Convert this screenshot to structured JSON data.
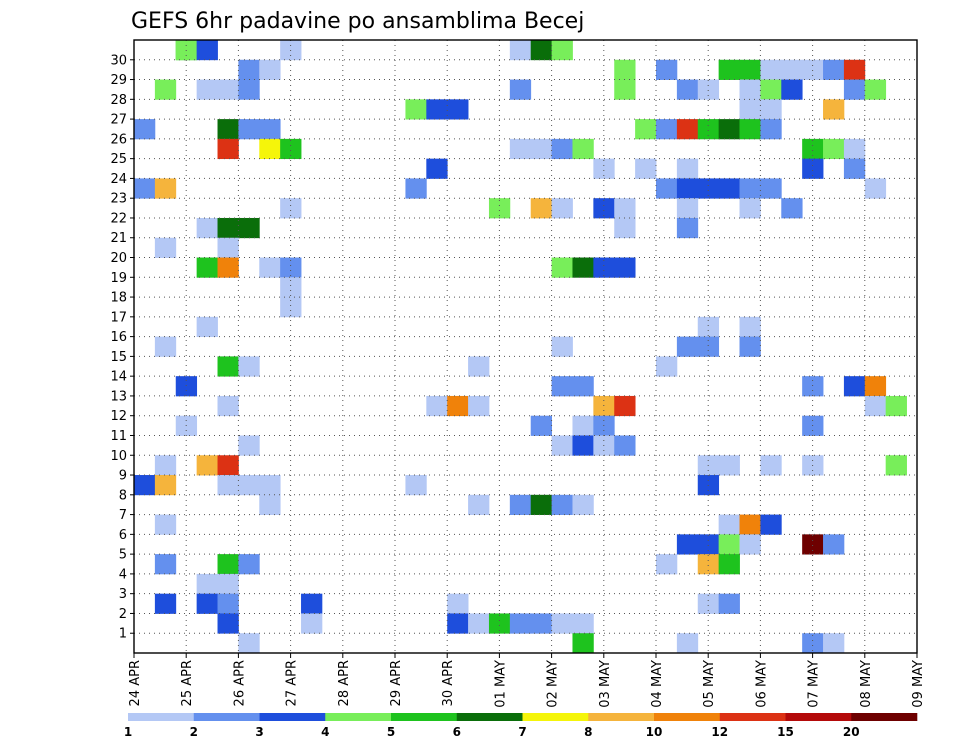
{
  "chart_data": {
    "type": "heatmap",
    "title": "GEFS 6hr padavine po ansamblima Becej",
    "x_ticks": [
      "24 APR",
      "25 APR",
      "26 APR",
      "27 APR",
      "28 APR",
      "29 APR",
      "30 APR",
      "01 MAY",
      "02 MAY",
      "03 MAY",
      "04 MAY",
      "05 MAY",
      "06 MAY",
      "07 MAY",
      "08 MAY",
      "09 MAY"
    ],
    "y_ticks": [
      "1",
      "2",
      "3",
      "4",
      "5",
      "6",
      "7",
      "8",
      "9",
      "10",
      "11",
      "12",
      "13",
      "14",
      "15",
      "16",
      "17",
      "18",
      "19",
      "20",
      "21",
      "22",
      "23",
      "24",
      "25",
      "26",
      "27",
      "28",
      "29",
      "30"
    ],
    "ylim": [
      0,
      30
    ],
    "grid": true,
    "legend_position": "bottom",
    "legend": {
      "labels": [
        "1",
        "2",
        "3",
        "4",
        "5",
        "6",
        "7",
        "8",
        "10",
        "12",
        "15",
        "20"
      ],
      "colors": [
        "#b4c8f5",
        "#6490ee",
        "#1e4edc",
        "#78ee5a",
        "#1ec31e",
        "#0a6e0a",
        "#f5f50a",
        "#f5b43c",
        "#f0820a",
        "#dc3214",
        "#b40a0a",
        "#6e0000"
      ]
    },
    "colors": [
      "#b4c8f5",
      "#6490ee",
      "#1e4edc",
      "#78ee5a",
      "#1ec31e",
      "#0a6e0a",
      "#f5f50a",
      "#f5b43c",
      "#f0820a",
      "#dc3214",
      "#b40a0a",
      "#6e0000"
    ],
    "cells": [
      [
        2,
        30,
        4
      ],
      [
        2,
        30,
        3
      ],
      [
        3,
        30,
        2
      ],
      [
        7,
        30,
        0
      ],
      [
        18,
        30,
        0
      ],
      [
        19,
        30,
        5
      ],
      [
        20,
        30,
        3
      ],
      [
        5,
        29,
        1
      ],
      [
        6,
        29,
        0
      ],
      [
        23,
        29,
        3
      ],
      [
        25,
        29,
        1
      ],
      [
        28,
        29,
        4
      ],
      [
        29,
        29,
        4
      ],
      [
        30,
        29,
        0
      ],
      [
        31,
        29,
        0
      ],
      [
        32,
        29,
        0
      ],
      [
        33,
        29,
        1
      ],
      [
        34,
        29,
        9
      ],
      [
        1,
        28,
        3
      ],
      [
        3,
        28,
        0
      ],
      [
        4,
        28,
        0
      ],
      [
        5,
        28,
        1
      ],
      [
        18,
        28,
        1
      ],
      [
        23,
        28,
        3
      ],
      [
        26,
        28,
        1
      ],
      [
        27,
        28,
        0
      ],
      [
        29,
        28,
        0
      ],
      [
        30,
        28,
        3
      ],
      [
        31,
        28,
        2
      ],
      [
        34,
        28,
        1
      ],
      [
        35,
        28,
        3
      ],
      [
        13,
        27,
        3
      ],
      [
        14,
        27,
        2
      ],
      [
        15,
        27,
        2
      ],
      [
        29,
        27,
        0
      ],
      [
        30,
        27,
        0
      ],
      [
        33,
        27,
        7
      ],
      [
        0,
        26,
        1
      ],
      [
        4,
        26,
        5
      ],
      [
        5,
        26,
        1
      ],
      [
        6,
        26,
        1
      ],
      [
        24,
        26,
        3
      ],
      [
        25,
        26,
        1
      ],
      [
        26,
        26,
        9
      ],
      [
        27,
        26,
        4
      ],
      [
        28,
        26,
        5
      ],
      [
        29,
        26,
        4
      ],
      [
        30,
        26,
        1
      ],
      [
        4,
        25,
        9
      ],
      [
        6,
        25,
        6
      ],
      [
        7,
        25,
        4
      ],
      [
        18,
        25,
        0
      ],
      [
        19,
        25,
        0
      ],
      [
        20,
        25,
        1
      ],
      [
        21,
        25,
        3
      ],
      [
        32,
        25,
        4
      ],
      [
        33,
        25,
        3
      ],
      [
        34,
        25,
        0
      ],
      [
        14,
        24,
        2
      ],
      [
        22,
        24,
        0
      ],
      [
        24,
        24,
        0
      ],
      [
        26,
        24,
        0
      ],
      [
        32,
        24,
        2
      ],
      [
        34,
        24,
        1
      ],
      [
        0,
        23,
        1
      ],
      [
        1,
        23,
        7
      ],
      [
        13,
        23,
        1
      ],
      [
        25,
        23,
        1
      ],
      [
        26,
        23,
        2
      ],
      [
        27,
        23,
        2
      ],
      [
        28,
        23,
        2
      ],
      [
        29,
        23,
        1
      ],
      [
        30,
        23,
        1
      ],
      [
        35,
        23,
        0
      ],
      [
        7,
        22,
        0
      ],
      [
        17,
        22,
        3
      ],
      [
        19,
        22,
        7
      ],
      [
        20,
        22,
        0
      ],
      [
        22,
        22,
        2
      ],
      [
        23,
        22,
        0
      ],
      [
        26,
        22,
        0
      ],
      [
        29,
        22,
        0
      ],
      [
        31,
        22,
        1
      ],
      [
        3,
        21,
        0
      ],
      [
        4,
        21,
        5
      ],
      [
        5,
        21,
        5
      ],
      [
        23,
        21,
        0
      ],
      [
        26,
        21,
        1
      ],
      [
        1,
        20,
        0
      ],
      [
        4,
        20,
        0
      ],
      [
        3,
        19,
        4
      ],
      [
        4,
        19,
        8
      ],
      [
        6,
        19,
        0
      ],
      [
        7,
        19,
        1
      ],
      [
        20,
        19,
        3
      ],
      [
        21,
        19,
        5
      ],
      [
        22,
        19,
        2
      ],
      [
        23,
        19,
        2
      ],
      [
        7,
        18,
        0
      ],
      [
        7,
        17,
        0
      ],
      [
        3,
        16,
        0
      ],
      [
        27,
        16,
        0
      ],
      [
        29,
        16,
        0
      ],
      [
        1,
        15,
        0
      ],
      [
        20,
        15,
        0
      ],
      [
        26,
        15,
        1
      ],
      [
        27,
        15,
        1
      ],
      [
        29,
        15,
        1
      ],
      [
        4,
        14,
        4
      ],
      [
        5,
        14,
        0
      ],
      [
        16,
        14,
        0
      ],
      [
        25,
        14,
        0
      ],
      [
        2,
        13,
        2
      ],
      [
        20,
        13,
        1
      ],
      [
        21,
        13,
        1
      ],
      [
        32,
        13,
        1
      ],
      [
        34,
        13,
        2
      ],
      [
        35,
        13,
        8
      ],
      [
        4,
        12,
        0
      ],
      [
        14,
        12,
        0
      ],
      [
        15,
        12,
        8
      ],
      [
        16,
        12,
        0
      ],
      [
        22,
        12,
        7
      ],
      [
        23,
        12,
        9
      ],
      [
        35,
        12,
        0
      ],
      [
        36,
        12,
        3
      ],
      [
        2,
        11,
        0
      ],
      [
        19,
        11,
        1
      ],
      [
        21,
        11,
        0
      ],
      [
        22,
        11,
        1
      ],
      [
        32,
        11,
        1
      ],
      [
        5,
        10,
        0
      ],
      [
        20,
        10,
        0
      ],
      [
        21,
        10,
        2
      ],
      [
        22,
        10,
        0
      ],
      [
        23,
        10,
        1
      ],
      [
        1,
        9,
        0
      ],
      [
        3,
        9,
        7
      ],
      [
        4,
        9,
        9
      ],
      [
        27,
        9,
        0
      ],
      [
        28,
        9,
        0
      ],
      [
        30,
        9,
        0
      ],
      [
        32,
        9,
        0
      ],
      [
        36,
        9,
        3
      ],
      [
        0,
        8,
        2
      ],
      [
        1,
        8,
        7
      ],
      [
        4,
        8,
        0
      ],
      [
        5,
        8,
        0
      ],
      [
        6,
        8,
        0
      ],
      [
        13,
        8,
        0
      ],
      [
        27,
        8,
        2
      ],
      [
        6,
        7,
        0
      ],
      [
        16,
        7,
        0
      ],
      [
        18,
        7,
        1
      ],
      [
        19,
        7,
        5
      ],
      [
        20,
        7,
        1
      ],
      [
        21,
        7,
        0
      ],
      [
        1,
        6,
        0
      ],
      [
        28,
        6,
        0
      ],
      [
        29,
        6,
        8
      ],
      [
        30,
        6,
        2
      ],
      [
        26,
        5,
        2
      ],
      [
        27,
        5,
        2
      ],
      [
        28,
        5,
        3
      ],
      [
        29,
        5,
        0
      ],
      [
        32,
        5,
        11
      ],
      [
        33,
        5,
        1
      ],
      [
        1,
        4,
        1
      ],
      [
        4,
        4,
        4
      ],
      [
        5,
        4,
        1
      ],
      [
        25,
        4,
        0
      ],
      [
        27,
        4,
        7
      ],
      [
        28,
        4,
        4
      ],
      [
        3,
        3,
        0
      ],
      [
        4,
        3,
        0
      ],
      [
        1,
        2,
        2
      ],
      [
        3,
        2,
        2
      ],
      [
        4,
        2,
        1
      ],
      [
        8,
        2,
        2
      ],
      [
        15,
        2,
        0
      ],
      [
        27,
        2,
        0
      ],
      [
        28,
        2,
        1
      ],
      [
        4,
        1,
        2
      ],
      [
        8,
        1,
        0
      ],
      [
        15,
        1,
        2
      ],
      [
        16,
        1,
        0
      ],
      [
        17,
        1,
        4
      ],
      [
        18,
        1,
        1
      ],
      [
        19,
        1,
        1
      ],
      [
        20,
        1,
        0
      ],
      [
        21,
        1,
        0
      ],
      [
        5,
        0,
        0
      ],
      [
        21,
        0,
        4
      ],
      [
        26,
        0,
        0
      ],
      [
        32,
        0,
        1
      ],
      [
        33,
        0,
        0
      ]
    ]
  }
}
